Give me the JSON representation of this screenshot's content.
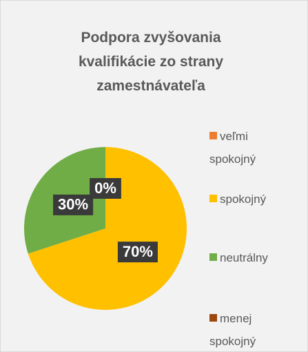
{
  "chart_data": {
    "type": "pie",
    "title": "Podpora zvyšovania kvalifikácie zo strany zamestnávateľa",
    "categories": [
      "veľmi spokojný",
      "spokojný",
      "neutrálny",
      "menej spokojný"
    ],
    "values": [
      0,
      70,
      30,
      0
    ],
    "value_labels": [
      "0%",
      "70%",
      "30%",
      null
    ],
    "colors": [
      "#ED7D31",
      "#FFC000",
      "#70AD47",
      "#9E480E"
    ],
    "legend": "right"
  }
}
